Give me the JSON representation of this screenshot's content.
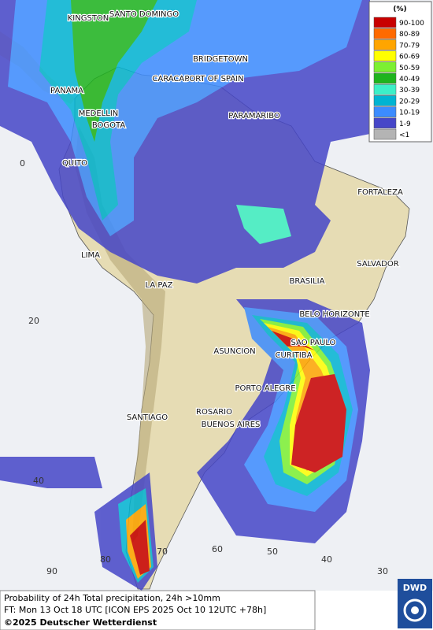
{
  "legend": {
    "title": "(%)",
    "items": [
      {
        "label": "90-100",
        "color": "#c80000"
      },
      {
        "label": "80-89",
        "color": "#ff6a00"
      },
      {
        "label": "70-79",
        "color": "#ffa500"
      },
      {
        "label": "60-69",
        "color": "#ffff00"
      },
      {
        "label": "50-59",
        "color": "#7cf032"
      },
      {
        "label": "40-49",
        "color": "#1eb41e"
      },
      {
        "label": "30-39",
        "color": "#3cf0c8"
      },
      {
        "label": "20-29",
        "color": "#00b4d2"
      },
      {
        "label": "10-19",
        "color": "#3c8cff"
      },
      {
        "label": "1-9",
        "color": "#4646c8"
      },
      {
        "label": "<1",
        "color": "#b4b4b4"
      }
    ]
  },
  "cities": [
    "KINGSTON",
    "SANTO DOMINGO",
    "BRIDGETOWN",
    "PANAMA",
    "CARACAS",
    "PORT OF SPAIN",
    "MEDELLIN",
    "BOGOTA",
    "PARAMARIBO",
    "QUITO",
    "FORTALEZA",
    "LIMA",
    "SALVADOR",
    "BRASILIA",
    "LA PAZ",
    "BELO HORIZONTE",
    "SAO PAULO",
    "ASUNCION",
    "CURITIBA",
    "PORTO ALEGRE",
    "ROSARIO",
    "SANTIAGO",
    "BUENOS AIRES"
  ],
  "latitudes": [
    "0",
    "20",
    "40"
  ],
  "longitudes": [
    "90",
    "80",
    "70",
    "60",
    "50",
    "40",
    "30"
  ],
  "footer": {
    "product": "Probability of 24h Total precipitation, 24h >10mm",
    "forecast_time": "FT: Mon 13 Oct 18 UTC [ICON EPS 2025 Oct 10 12UTC +78h]",
    "copyright": "©2025 Deutscher Wetterdienst"
  },
  "logo": "DWD"
}
